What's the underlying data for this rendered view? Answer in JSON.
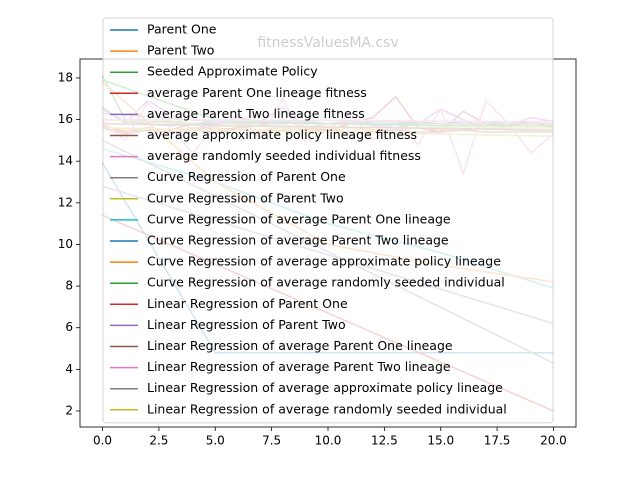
{
  "chart_data": {
    "type": "line",
    "title": "fitnessValuesMA.csv",
    "xlim": [
      -1,
      21
    ],
    "ylim": [
      1.23,
      18.91
    ],
    "xticks": [
      {
        "value": 0,
        "label": "0.0"
      },
      {
        "value": 2.5,
        "label": "2.5"
      },
      {
        "value": 5,
        "label": "5.0"
      },
      {
        "value": 7.5,
        "label": "7.5"
      },
      {
        "value": 10,
        "label": "10.0"
      },
      {
        "value": 12.5,
        "label": "12.5"
      },
      {
        "value": 15,
        "label": "15.0"
      },
      {
        "value": 17.5,
        "label": "17.5"
      },
      {
        "value": 20,
        "label": "20.0"
      }
    ],
    "yticks": [
      2,
      4,
      6,
      8,
      10,
      12,
      14,
      16,
      18
    ],
    "legend": "upper center",
    "series": [
      {
        "name": "Parent One",
        "color": "#1f77b4",
        "x": [
          0,
          1,
          2,
          3,
          4,
          5,
          6,
          7,
          8,
          9,
          10,
          11,
          12,
          13,
          14,
          15,
          16,
          17,
          18,
          19,
          20
        ],
        "values": [
          16.5,
          15.9,
          15.8,
          15.7,
          15.8,
          15.8,
          15.9,
          15.8,
          15.8,
          15.9,
          15.8,
          15.8,
          15.9,
          15.9,
          15.8,
          15.8,
          15.9,
          15.9,
          15.8,
          15.9,
          15.9
        ]
      },
      {
        "name": "Parent Two",
        "color": "#ff7f0e",
        "x": [
          0,
          1,
          2,
          3,
          4,
          5,
          6,
          7,
          8,
          9,
          10,
          11,
          12,
          13,
          14,
          15,
          16,
          17,
          18,
          19,
          20
        ],
        "values": [
          15.6,
          15.5,
          15.6,
          15.5,
          15.6,
          15.6,
          15.5,
          15.5,
          15.6,
          15.5,
          15.5,
          15.6,
          15.5,
          15.5,
          15.6,
          15.5,
          15.5,
          15.6,
          15.5,
          15.5,
          15.5
        ]
      },
      {
        "name": "Seeded Approximate Policy",
        "color": "#2ca02c",
        "x": [
          0,
          1,
          2,
          3,
          4,
          5,
          6,
          7,
          8,
          9,
          10,
          11,
          12,
          13,
          14,
          15,
          16,
          17,
          18,
          19,
          20
        ],
        "values": [
          18.1,
          16.0,
          15.9,
          15.9,
          15.8,
          15.9,
          15.8,
          15.8,
          15.9,
          15.8,
          15.8,
          15.9,
          15.8,
          15.8,
          15.9,
          15.8,
          15.8,
          15.8,
          15.8,
          15.8,
          15.8
        ]
      },
      {
        "name": "average Parent One lineage fitness",
        "color": "#d62728",
        "x": [
          0,
          1,
          2,
          3,
          4,
          5,
          6,
          7,
          8,
          9,
          10,
          11,
          12,
          13,
          14,
          15,
          16,
          17,
          18,
          19,
          20
        ],
        "values": [
          15.7,
          15.4,
          15.6,
          15.5,
          15.8,
          15.5,
          15.6,
          15.7,
          16.0,
          15.6,
          15.5,
          15.8,
          16.1,
          17.1,
          15.6,
          15.4,
          16.4,
          15.8,
          15.7,
          15.9,
          15.6
        ]
      },
      {
        "name": "average Parent Two lineage fitness",
        "color": "#9467bd",
        "x": [
          0,
          1,
          2,
          3,
          4,
          5,
          6,
          7,
          8,
          9,
          10,
          11,
          12,
          13,
          14,
          15,
          16,
          17,
          18,
          19,
          20
        ],
        "values": [
          16.6,
          15.8,
          16.9,
          16.3,
          15.5,
          15.7,
          16.1,
          15.9,
          16.6,
          15.6,
          15.8,
          15.9,
          15.7,
          15.6,
          15.8,
          16.5,
          16.0,
          15.5,
          15.7,
          16.1,
          15.9
        ]
      },
      {
        "name": "average approximate policy lineage fitness",
        "color": "#8c564b",
        "x": [
          0,
          1,
          2,
          3,
          4,
          5,
          6,
          7,
          8,
          9,
          10,
          11,
          12,
          13,
          14,
          15,
          16,
          17,
          18,
          19,
          20
        ],
        "values": [
          15.6,
          15.3,
          15.5,
          15.4,
          15.5,
          15.4,
          15.5,
          15.4,
          15.5,
          15.4,
          15.5,
          15.4,
          15.4,
          15.5,
          15.4,
          15.4,
          15.5,
          15.4,
          15.4,
          15.4,
          15.4
        ]
      },
      {
        "name": "average randomly seeded individual fitness",
        "color": "#e377c2",
        "x": [
          0,
          1,
          2,
          3,
          4,
          5,
          6,
          7,
          8,
          9,
          10,
          11,
          12,
          13,
          14,
          15,
          16,
          17,
          18,
          19,
          20
        ],
        "values": [
          15.9,
          15.0,
          16.8,
          15.6,
          14.4,
          15.7,
          16.2,
          15.1,
          17.0,
          14.9,
          15.5,
          16.3,
          15.0,
          15.9,
          14.8,
          16.5,
          13.4,
          16.9,
          15.8,
          14.4,
          15.3
        ]
      },
      {
        "name": "Curve Regression of Parent One",
        "color": "#7f7f7f",
        "x": [
          0,
          5,
          10,
          15,
          20
        ],
        "values": [
          16.3,
          15.9,
          15.8,
          15.8,
          15.8
        ]
      },
      {
        "name": "Curve Regression of Parent Two",
        "color": "#bcbd22",
        "x": [
          0,
          5,
          10,
          15,
          20
        ],
        "values": [
          16.0,
          15.7,
          15.6,
          15.6,
          15.6
        ]
      },
      {
        "name": "Curve Regression of average Parent One lineage",
        "color": "#17becf",
        "x": [
          0,
          5,
          10,
          15,
          20
        ],
        "values": [
          14.6,
          13.0,
          11.0,
          9.6,
          7.9
        ]
      },
      {
        "name": "Curve Regression of average Parent Two lineage",
        "color": "#1f77b4",
        "x": [
          0,
          5,
          10,
          15,
          20
        ],
        "values": [
          13.9,
          4.8,
          4.8,
          4.8,
          4.8
        ]
      },
      {
        "name": "Curve Regression of average approximate policy lineage",
        "color": "#ff7f0e",
        "x": [
          0,
          5,
          10,
          15,
          20
        ],
        "values": [
          17.8,
          13.0,
          10.0,
          9.0,
          8.2
        ]
      },
      {
        "name": "Curve Regression of average randomly seeded individual",
        "color": "#2ca02c",
        "x": [
          0,
          5,
          10,
          15,
          20
        ],
        "values": [
          17.9,
          16.0,
          15.8,
          15.7,
          15.7
        ]
      },
      {
        "name": "Linear Regression of Parent One",
        "color": "#d62728",
        "x": [
          0,
          20
        ],
        "values": [
          11.4,
          2.0
        ]
      },
      {
        "name": "Linear Regression of Parent Two",
        "color": "#9467bd",
        "x": [
          0,
          20
        ],
        "values": [
          12.8,
          6.2
        ]
      },
      {
        "name": "Linear Regression of average Parent One lineage",
        "color": "#8c564b",
        "x": [
          0,
          20
        ],
        "values": [
          15.8,
          15.5
        ]
      },
      {
        "name": "Linear Regression of average Parent Two lineage",
        "color": "#e377c2",
        "x": [
          0,
          20
        ],
        "values": [
          16.0,
          15.9
        ]
      },
      {
        "name": "Linear Regression of average approximate policy lineage",
        "color": "#7f7f7f",
        "x": [
          0,
          20
        ],
        "values": [
          15.0,
          4.3
        ]
      },
      {
        "name": "Linear Regression of average randomly seeded individual",
        "color": "#bcbd22",
        "x": [
          0,
          20
        ],
        "values": [
          15.6,
          15.2
        ]
      }
    ]
  }
}
